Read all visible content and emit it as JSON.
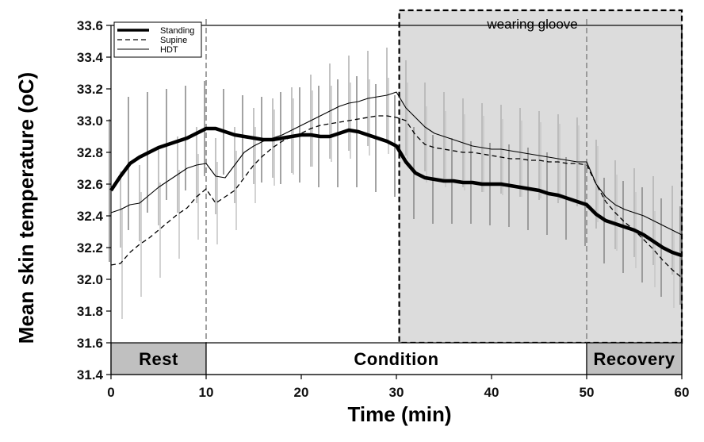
{
  "chart_data": {
    "type": "line",
    "title": "",
    "xlabel": "Time (min)",
    "ylabel": "Mean skin temperature (oC)",
    "xlim": [
      0,
      60
    ],
    "ylim": [
      31.4,
      33.6
    ],
    "x_ticks": [
      "0",
      "10",
      "20",
      "30",
      "40",
      "50",
      "60"
    ],
    "y_ticks": [
      "31.4",
      "31.6",
      "31.8",
      "32.0",
      "32.2",
      "32.4",
      "32.6",
      "32.8",
      "33.0",
      "33.2",
      "33.4",
      "33.6"
    ],
    "legend": {
      "placement": "top-left",
      "entries": [
        "Standing",
        "Supine",
        "HDT"
      ]
    },
    "phases": [
      {
        "label": "Rest",
        "start": 0,
        "end": 10,
        "shaded": true
      },
      {
        "label": "Condition",
        "start": 10,
        "end": 50,
        "shaded": false
      },
      {
        "label": "Recovery",
        "start": 50,
        "end": 60,
        "shaded": true
      }
    ],
    "shaded_region": {
      "label": "wearing gloove",
      "start": 30.3,
      "end": 60
    },
    "vertical_markers": [
      10,
      50
    ],
    "series": [
      {
        "name": "Standing",
        "style": "thick-solid",
        "x": [
          0,
          1,
          2,
          3,
          4,
          5,
          6,
          7,
          8,
          9,
          10,
          11,
          12,
          13,
          14,
          15,
          16,
          17,
          18,
          19,
          20,
          21,
          22,
          23,
          24,
          25,
          26,
          27,
          28,
          29,
          30,
          31,
          32,
          33,
          34,
          35,
          36,
          37,
          38,
          39,
          40,
          41,
          42,
          43,
          44,
          45,
          46,
          47,
          48,
          49,
          50,
          51,
          52,
          53,
          54,
          55,
          56,
          57,
          58,
          59,
          60
        ],
        "values": [
          32.56,
          32.65,
          32.73,
          32.77,
          32.8,
          32.83,
          32.85,
          32.87,
          32.89,
          32.92,
          32.95,
          32.95,
          32.93,
          32.91,
          32.9,
          32.89,
          32.88,
          32.88,
          32.89,
          32.9,
          32.91,
          32.91,
          32.9,
          32.9,
          32.92,
          32.94,
          32.93,
          32.91,
          32.89,
          32.87,
          32.84,
          32.74,
          32.67,
          32.64,
          32.63,
          32.62,
          32.62,
          32.61,
          32.61,
          32.6,
          32.6,
          32.6,
          32.59,
          32.58,
          32.57,
          32.56,
          32.54,
          32.53,
          32.51,
          32.49,
          32.47,
          32.41,
          32.37,
          32.35,
          32.33,
          32.31,
          32.28,
          32.24,
          32.2,
          32.17,
          32.15
        ],
        "error": [
          0.45,
          0.45,
          0.42,
          0.4,
          0.38,
          0.36,
          0.35,
          0.34,
          0.33,
          0.32,
          0.3,
          0.28,
          0.27,
          0.26,
          0.26,
          0.26,
          0.27,
          0.28,
          0.29,
          0.3,
          0.3,
          0.31,
          0.32,
          0.33,
          0.34,
          0.35,
          0.35,
          0.35,
          0.34,
          0.33,
          0.32,
          0.3,
          0.29,
          0.28,
          0.28,
          0.27,
          0.27,
          0.26,
          0.26,
          0.26,
          0.26,
          0.26,
          0.26,
          0.26,
          0.26,
          0.26,
          0.26,
          0.26,
          0.26,
          0.26,
          0.26,
          0.26,
          0.27,
          0.28,
          0.29,
          0.3,
          0.3,
          0.31,
          0.31,
          0.31,
          0.31
        ]
      },
      {
        "name": "Supine",
        "style": "dashed",
        "x": [
          0,
          1,
          2,
          3,
          4,
          5,
          6,
          7,
          8,
          9,
          10,
          11,
          12,
          13,
          14,
          15,
          16,
          17,
          18,
          19,
          20,
          21,
          22,
          23,
          24,
          25,
          26,
          27,
          28,
          29,
          30,
          31,
          32,
          33,
          34,
          35,
          36,
          37,
          38,
          39,
          40,
          41,
          42,
          43,
          44,
          45,
          46,
          47,
          48,
          49,
          50,
          51,
          52,
          53,
          54,
          55,
          56,
          57,
          58,
          59,
          60
        ],
        "values": [
          32.09,
          32.1,
          32.17,
          32.22,
          32.26,
          32.31,
          32.36,
          32.41,
          32.45,
          32.52,
          32.57,
          32.48,
          32.52,
          32.56,
          32.64,
          32.72,
          32.78,
          32.83,
          32.87,
          32.9,
          32.92,
          32.95,
          32.97,
          32.98,
          32.99,
          33.0,
          33.01,
          33.02,
          33.03,
          33.03,
          33.02,
          33.0,
          32.91,
          32.85,
          32.83,
          32.82,
          32.81,
          32.8,
          32.8,
          32.79,
          32.78,
          32.77,
          32.76,
          32.76,
          32.75,
          32.75,
          32.74,
          32.74,
          32.73,
          32.73,
          32.72,
          32.6,
          32.49,
          32.42,
          32.36,
          32.31,
          32.25,
          32.19,
          32.12,
          32.06,
          32.01
        ],
        "error": [
          0.35,
          0.35,
          0.35,
          0.33,
          0.32,
          0.3,
          0.3,
          0.28,
          0.28,
          0.27,
          0.27,
          0.26,
          0.26,
          0.25,
          0.25,
          0.24,
          0.24,
          0.24,
          0.24,
          0.24,
          0.24,
          0.24,
          0.24,
          0.24,
          0.24,
          0.24,
          0.24,
          0.24,
          0.24,
          0.24,
          0.24,
          0.24,
          0.24,
          0.24,
          0.24,
          0.24,
          0.24,
          0.24,
          0.24,
          0.24,
          0.24,
          0.24,
          0.24,
          0.24,
          0.24,
          0.24,
          0.24,
          0.24,
          0.24,
          0.24,
          0.24,
          0.24,
          0.24,
          0.24,
          0.24,
          0.24,
          0.24,
          0.24,
          0.24,
          0.24,
          0.24
        ]
      },
      {
        "name": "HDT",
        "style": "thin-solid",
        "x": [
          0,
          1,
          2,
          3,
          4,
          5,
          6,
          7,
          8,
          9,
          10,
          11,
          12,
          13,
          14,
          15,
          16,
          17,
          18,
          19,
          20,
          21,
          22,
          23,
          24,
          25,
          26,
          27,
          28,
          29,
          30,
          31,
          32,
          33,
          34,
          35,
          36,
          37,
          38,
          39,
          40,
          41,
          42,
          43,
          44,
          45,
          46,
          47,
          48,
          49,
          50,
          51,
          52,
          53,
          54,
          55,
          56,
          57,
          58,
          59,
          60
        ],
        "values": [
          32.42,
          32.44,
          32.47,
          32.48,
          32.53,
          32.58,
          32.62,
          32.66,
          32.7,
          32.72,
          32.73,
          32.65,
          32.64,
          32.72,
          32.8,
          32.84,
          32.87,
          32.89,
          32.91,
          32.94,
          32.97,
          33.0,
          33.03,
          33.06,
          33.09,
          33.11,
          33.12,
          33.14,
          33.15,
          33.16,
          33.18,
          33.08,
          33.02,
          32.96,
          32.92,
          32.9,
          32.88,
          32.86,
          32.84,
          32.83,
          32.82,
          32.82,
          32.81,
          32.8,
          32.79,
          32.78,
          32.77,
          32.76,
          32.75,
          32.74,
          32.74,
          32.6,
          32.52,
          32.47,
          32.44,
          32.42,
          32.4,
          32.37,
          32.34,
          32.31,
          32.28
        ],
        "error": [
          0.24,
          0.24,
          0.24,
          0.24,
          0.24,
          0.24,
          0.24,
          0.24,
          0.24,
          0.24,
          0.24,
          0.24,
          0.24,
          0.24,
          0.24,
          0.24,
          0.24,
          0.25,
          0.26,
          0.27,
          0.28,
          0.29,
          0.3,
          0.3,
          0.3,
          0.3,
          0.3,
          0.3,
          0.3,
          0.3,
          0.3,
          0.3,
          0.28,
          0.28,
          0.28,
          0.28,
          0.28,
          0.28,
          0.28,
          0.28,
          0.28,
          0.28,
          0.28,
          0.28,
          0.28,
          0.28,
          0.28,
          0.28,
          0.28,
          0.28,
          0.28,
          0.28,
          0.28,
          0.28,
          0.28,
          0.28,
          0.28,
          0.28,
          0.28,
          0.28,
          0.28
        ]
      }
    ]
  }
}
